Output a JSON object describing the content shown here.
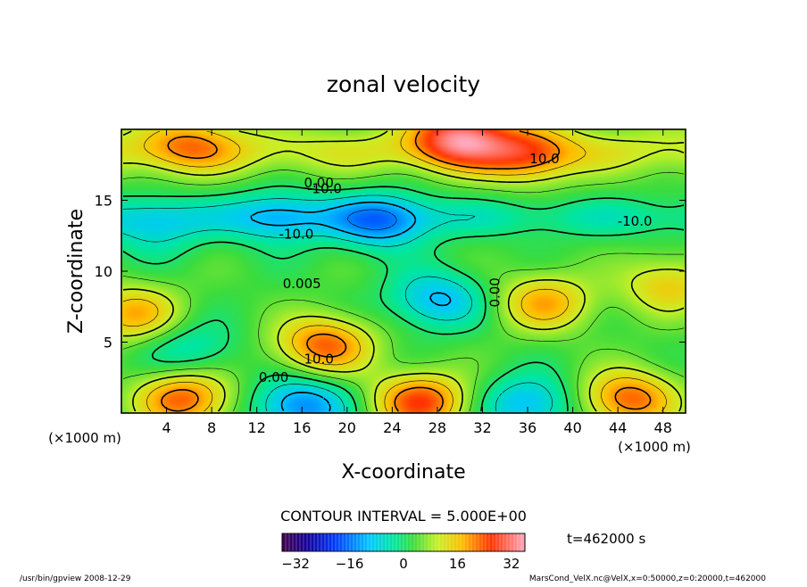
{
  "chart_data": {
    "type": "heatmap",
    "title": "zonal velocity",
    "xlabel": "X-coordinate",
    "ylabel": "Z-coordinate",
    "x_unit_label": "(×1000 m)",
    "z_unit_label": "(×1000 m)",
    "xlim": [
      0,
      50
    ],
    "zlim": [
      0,
      20
    ],
    "x_ticks": [
      "4",
      "8",
      "12",
      "16",
      "20",
      "24",
      "28",
      "32",
      "36",
      "40",
      "44",
      "48"
    ],
    "z_ticks": [
      "5",
      "10",
      "15"
    ],
    "contour_interval_text": "CONTOUR INTERVAL = 5.000E+00",
    "time_text": "t=462000 s",
    "colorbar": {
      "min": -36,
      "max": 36,
      "tick_labels": [
        "−32",
        "−16",
        "0",
        "16",
        "32"
      ],
      "tick_values": [
        -32,
        -16,
        0,
        16,
        32
      ]
    },
    "contour_labels": [
      "10.0",
      "0.00",
      "-10.0",
      "-10.0",
      "-10.0",
      "0.005",
      "0.00",
      "10.0",
      "0.00"
    ],
    "features": [
      {
        "kind": "max",
        "x": 30,
        "z": 19.5,
        "value": 25
      },
      {
        "kind": "max",
        "x": 36,
        "z": 18.2,
        "value": 15
      },
      {
        "kind": "max",
        "x": 18,
        "z": 4.8,
        "value": 20
      },
      {
        "kind": "max",
        "x": 37.5,
        "z": 7.8,
        "value": 15
      },
      {
        "kind": "max",
        "x": 5.5,
        "z": 1.0,
        "value": 20
      },
      {
        "kind": "max",
        "x": 26.5,
        "z": 0.8,
        "value": 22
      },
      {
        "kind": "max",
        "x": 45,
        "z": 1.0,
        "value": 20
      },
      {
        "kind": "max",
        "x": 1.0,
        "z": 7.0,
        "value": 15
      },
      {
        "kind": "max",
        "x": 48.5,
        "z": 9.0,
        "value": 12
      },
      {
        "kind": "max",
        "x": 6,
        "z": 19.0,
        "value": 12
      },
      {
        "kind": "min",
        "x": 23,
        "z": 13.5,
        "value": -15
      },
      {
        "kind": "min",
        "x": 14,
        "z": 13.8,
        "value": -10
      },
      {
        "kind": "min",
        "x": 3,
        "z": 13.0,
        "value": -8
      },
      {
        "kind": "min",
        "x": 28,
        "z": 8.0,
        "value": -14
      },
      {
        "kind": "min",
        "x": 6,
        "z": 4.5,
        "value": -8
      },
      {
        "kind": "min",
        "x": 16,
        "z": 0.5,
        "value": -18
      },
      {
        "kind": "min",
        "x": 36,
        "z": 0.6,
        "value": -14
      }
    ]
  },
  "footer": {
    "left": "/usr/bin/gpview   2008-12-29",
    "right": "MarsCond_VelX.nc@VelX,x=0:50000,z=0:20000,t=462000"
  }
}
